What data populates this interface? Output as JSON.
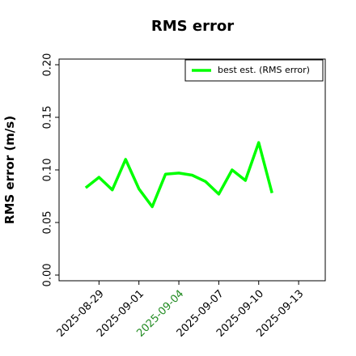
{
  "chart_data": {
    "type": "line",
    "title": "RMS error",
    "ylabel": "RMS error (m/s)",
    "x": [
      "2025-08-28",
      "2025-08-29",
      "2025-08-30",
      "2025-08-31",
      "2025-09-01",
      "2025-09-02",
      "2025-09-03",
      "2025-09-04",
      "2025-09-05",
      "2025-09-06",
      "2025-09-07",
      "2025-09-08",
      "2025-09-09",
      "2025-09-10",
      "2025-09-11"
    ],
    "series": [
      {
        "name": "best est. (RMS error)",
        "color": "#00ff00",
        "values": [
          0.083,
          0.093,
          0.081,
          0.11,
          0.082,
          0.065,
          0.096,
          0.097,
          0.095,
          0.089,
          0.077,
          0.1,
          0.09,
          0.126,
          0.078
        ]
      }
    ],
    "xlim": [
      "2025-08-26",
      "2025-09-15"
    ],
    "xticks": [
      "2025-08-29",
      "2025-09-01",
      "2025-09-04",
      "2025-09-07",
      "2025-09-10",
      "2025-09-13"
    ],
    "highlight_xtick": 2,
    "highlight_color": "#228b22",
    "ylim": [
      -0.0054,
      0.2054
    ],
    "yticks": [
      {
        "value": 0,
        "label": "0.00"
      },
      {
        "value": 0.05,
        "label": "0.05"
      },
      {
        "value": 0.1,
        "label": "0.10"
      },
      {
        "value": 0.15,
        "label": "0.15"
      },
      {
        "value": 0.2,
        "label": "0.20"
      }
    ],
    "legend": "upper right",
    "grid": false
  }
}
